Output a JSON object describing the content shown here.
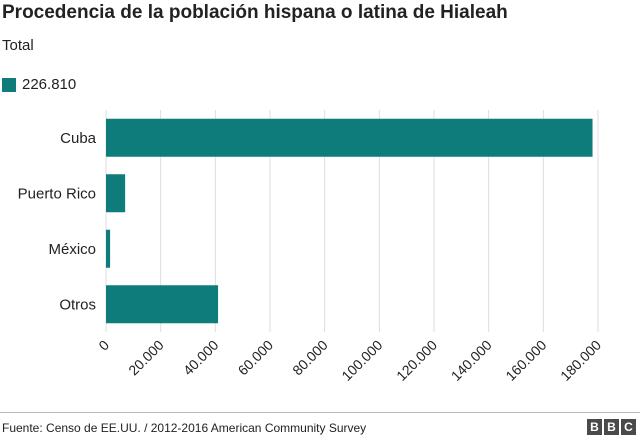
{
  "chart_data": {
    "type": "bar",
    "orientation": "horizontal",
    "title": "Procedencia de la población hispana o latina de Hialeah",
    "subtitle": "Total",
    "categories": [
      "Cuba",
      "Puerto Rico",
      "México",
      "Otros"
    ],
    "series": [
      {
        "name": "226.810",
        "values": [
          178000,
          7000,
          1500,
          41000
        ]
      }
    ],
    "xlim": [
      0,
      180000
    ],
    "xticks": [
      0,
      20000,
      40000,
      60000,
      80000,
      100000,
      120000,
      140000,
      160000,
      180000
    ],
    "xtick_labels": [
      "0",
      "20.000",
      "40.000",
      "60.000",
      "80.000",
      "100.000",
      "120.000",
      "140.000",
      "160.000",
      "180.000"
    ],
    "grid": true,
    "legend_position": "top-left",
    "bar_color": "#0e7c7b",
    "grid_color": "#dddddd"
  },
  "footer": {
    "source": "Fuente: Censo de EE.UU. / 2012-2016 American Community Survey",
    "logo_letters": [
      "B",
      "B",
      "C"
    ]
  }
}
